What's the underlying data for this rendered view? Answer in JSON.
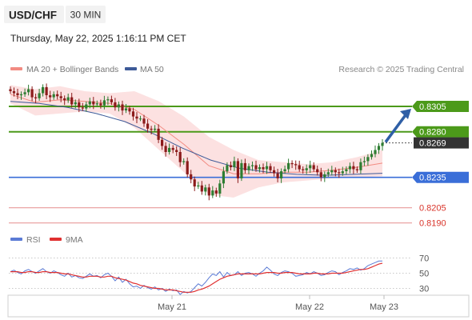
{
  "header": {
    "symbol": "USD/CHF",
    "timeframe": "30 MIN",
    "datetime": "Thursday, May 22, 2025 1:16:11 PM CET"
  },
  "legend": {
    "items": [
      {
        "label": "MA 20 + Bollinger Bands",
        "color": "#f28b82"
      },
      {
        "label": "MA 50",
        "color": "#3d5a98"
      }
    ],
    "credit": "Research © 2025 Trading Central"
  },
  "rsi_legend": {
    "items": [
      {
        "label": "RSI",
        "color": "#5b7bd5"
      },
      {
        "label": "9MA",
        "color": "#e03030"
      }
    ]
  },
  "colors": {
    "resistance": "#4c9a1a",
    "support": "#3a6ed8",
    "lower_levels": "#e89a9a",
    "up_candle": "#2e7d32",
    "down_candle": "#8b1a1a",
    "band_fill": "#fbdcdc",
    "arrow": "#2f5fa6",
    "current": "#333333"
  },
  "chart_data": [
    {
      "type": "candlestick",
      "title": "USD/CHF",
      "timeframe": "30 MIN",
      "x_tick_labels": [
        "May 21",
        "May 22",
        "May 23"
      ],
      "ylim": [
        0.8185,
        0.8335
      ],
      "levels": [
        {
          "label": "0.8305",
          "value": 0.8305,
          "kind": "resistance"
        },
        {
          "label": "0.8280",
          "value": 0.828,
          "kind": "resistance"
        },
        {
          "label": "0.8269",
          "value": 0.8269,
          "kind": "current"
        },
        {
          "label": "0.8235",
          "value": 0.8235,
          "kind": "support"
        },
        {
          "label": "0.8205",
          "value": 0.8205,
          "kind": "support"
        },
        {
          "label": "0.8190",
          "value": 0.819,
          "kind": "support"
        }
      ],
      "close_path": [
        0.832,
        0.8318,
        0.8316,
        0.8317,
        0.8319,
        0.8322,
        0.8314,
        0.8313,
        0.8318,
        0.8324,
        0.8316,
        0.8314,
        0.8317,
        0.8315,
        0.8313,
        0.8311,
        0.8314,
        0.8307,
        0.8309,
        0.8304,
        0.8303,
        0.8307,
        0.831,
        0.8307,
        0.8308,
        0.8306,
        0.8311,
        0.8312,
        0.8309,
        0.8304,
        0.8307,
        0.8301,
        0.8303,
        0.83,
        0.8295,
        0.8293,
        0.8293,
        0.8288,
        0.8283,
        0.8282,
        0.8283,
        0.8272,
        0.8266,
        0.826,
        0.8264,
        0.8262,
        0.826,
        0.825,
        0.8251,
        0.8238,
        0.8233,
        0.8226,
        0.8227,
        0.8221,
        0.8225,
        0.8217,
        0.8222,
        0.8219,
        0.8229,
        0.8241,
        0.8247,
        0.8245,
        0.8251,
        0.8234,
        0.8249,
        0.8242,
        0.8246,
        0.8247,
        0.8243,
        0.8245,
        0.8243,
        0.8246,
        0.8242,
        0.8239,
        0.8234,
        0.8241,
        0.8243,
        0.8249,
        0.8248,
        0.8247,
        0.8243,
        0.8242,
        0.8244,
        0.8247,
        0.8243,
        0.824,
        0.8235,
        0.8238,
        0.824,
        0.8242,
        0.824,
        0.8239,
        0.8241,
        0.8243,
        0.8246,
        0.8243,
        0.8242,
        0.825,
        0.8251,
        0.8255,
        0.8258,
        0.8262,
        0.8266,
        0.8269
      ],
      "ma50_path": [
        0.831,
        0.8308,
        0.8304,
        0.8298,
        0.829,
        0.8278,
        0.8264,
        0.8252,
        0.8244,
        0.824,
        0.8238,
        0.8237,
        0.8238,
        0.8239
      ],
      "bollinger": {
        "upper_path": [
          0.8326,
          0.8322,
          0.8325,
          0.832,
          0.8318,
          0.832,
          0.831,
          0.8295,
          0.8275,
          0.8262,
          0.8252,
          0.825,
          0.8248,
          0.825,
          0.8255,
          0.8262
        ],
        "lower_path": [
          0.8308,
          0.8296,
          0.8298,
          0.83,
          0.8298,
          0.8284,
          0.8262,
          0.824,
          0.8218,
          0.8215,
          0.8225,
          0.823,
          0.8232,
          0.8234,
          0.8235,
          0.8236
        ]
      }
    },
    {
      "type": "line",
      "title": "RSI",
      "series": [
        {
          "name": "RSI",
          "values": [
            52,
            54,
            51,
            49,
            53,
            55,
            52,
            50,
            53,
            56,
            52,
            50,
            53,
            51,
            48,
            46,
            50,
            45,
            47,
            44,
            43,
            46,
            49,
            46,
            47,
            44,
            48,
            50,
            46,
            40,
            45,
            38,
            42,
            36,
            32,
            33,
            30,
            34,
            31,
            29,
            32,
            28,
            30,
            26,
            29,
            27,
            28,
            22,
            26,
            24,
            26,
            31,
            36,
            33,
            38,
            44,
            49,
            47,
            52,
            45,
            51,
            47,
            48,
            52,
            47,
            50,
            51,
            49,
            46,
            50,
            53,
            58,
            54,
            49,
            47,
            51,
            53,
            52,
            50,
            46,
            47,
            48,
            51,
            49,
            52,
            50,
            47,
            48,
            51,
            53,
            52,
            48,
            51,
            53,
            56,
            55,
            57,
            54,
            56,
            60,
            62,
            64,
            66,
            66
          ]
        },
        {
          "name": "9MA",
          "values": [
            52,
            52,
            52,
            51,
            51,
            52,
            52,
            51,
            51,
            52,
            52,
            51,
            51,
            51,
            50,
            49,
            49,
            48,
            47,
            46,
            45,
            45,
            46,
            46,
            46,
            45,
            45,
            46,
            46,
            44,
            43,
            42,
            41,
            39,
            37,
            36,
            34,
            33,
            32,
            31,
            30,
            30,
            29,
            28,
            28,
            28,
            27,
            26,
            25,
            25,
            25,
            26,
            28,
            29,
            31,
            33,
            36,
            39,
            42,
            44,
            46,
            47,
            48,
            49,
            49,
            49,
            49,
            49,
            49,
            49,
            50,
            51,
            51,
            51,
            50,
            50,
            51,
            51,
            51,
            50,
            49,
            49,
            49,
            49,
            50,
            50,
            49,
            49,
            49,
            50,
            50,
            50,
            50,
            51,
            52,
            53,
            54,
            55,
            55,
            56,
            58,
            60,
            62,
            63
          ]
        }
      ],
      "ylim": [
        20,
        80
      ],
      "y_tick_labels": [
        "70",
        "50",
        "30"
      ],
      "y_ticks": [
        70,
        50,
        30
      ]
    }
  ]
}
